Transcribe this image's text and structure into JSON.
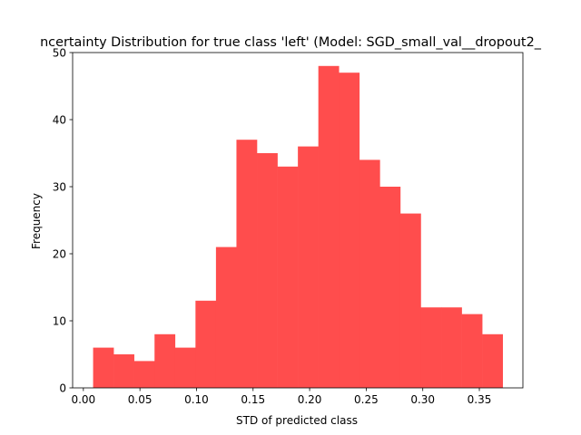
{
  "chart_data": {
    "type": "bar",
    "title": "ncertainty Distribution for true class 'left' (Model: SGD_small_val__dropout2_",
    "xlabel": "STD of predicted class",
    "ylabel": "Frequency",
    "bar_color": "#ff4d4d",
    "xlim": [
      -0.0095,
      0.3885
    ],
    "ylim": [
      0,
      50
    ],
    "x_ticks": [
      0.0,
      0.05,
      0.1,
      0.15,
      0.2,
      0.25,
      0.3,
      0.35
    ],
    "x_tick_labels": [
      "0.00",
      "0.05",
      "0.10",
      "0.15",
      "0.20",
      "0.25",
      "0.30",
      "0.35"
    ],
    "y_ticks": [
      0,
      10,
      20,
      30,
      40,
      50
    ],
    "y_tick_labels": [
      "0",
      "10",
      "20",
      "30",
      "40",
      "50"
    ],
    "bin_edges": [
      0.0086,
      0.0267,
      0.0448,
      0.0629,
      0.081,
      0.0991,
      0.1172,
      0.1353,
      0.1534,
      0.1715,
      0.1896,
      0.2077,
      0.2258,
      0.2439,
      0.262,
      0.2801,
      0.2982,
      0.3163,
      0.3344,
      0.3525,
      0.3706
    ],
    "values": [
      6,
      5,
      4,
      8,
      6,
      13,
      21,
      37,
      35,
      33,
      36,
      48,
      47,
      34,
      30,
      26,
      12,
      12,
      11,
      8
    ]
  }
}
